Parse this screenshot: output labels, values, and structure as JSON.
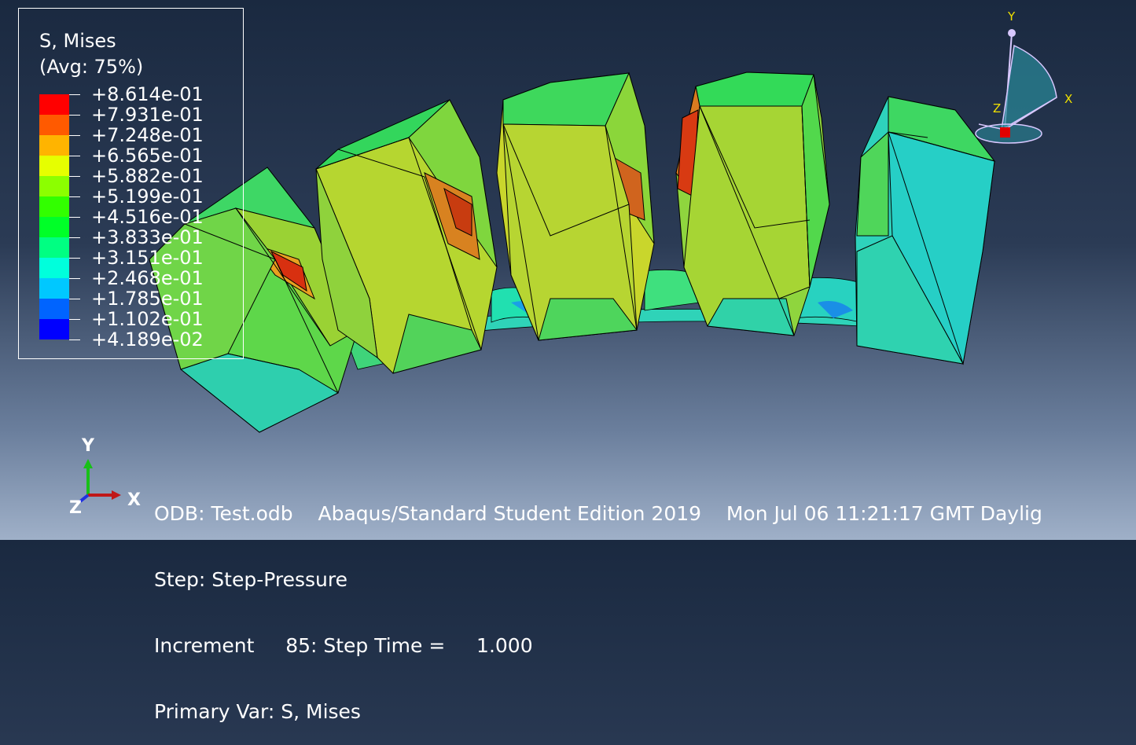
{
  "legend": {
    "title": "S, Mises",
    "subtitle": "(Avg: 75%)",
    "levels": [
      {
        "value": "+8.614e-01",
        "color": "#ff0000"
      },
      {
        "value": "+7.931e-01",
        "color": "#ff5a00"
      },
      {
        "value": "+7.248e-01",
        "color": "#ffb400"
      },
      {
        "value": "+6.565e-01",
        "color": "#e6ff00"
      },
      {
        "value": "+5.882e-01",
        "color": "#8cff00"
      },
      {
        "value": "+5.199e-01",
        "color": "#32ff00"
      },
      {
        "value": "+4.516e-01",
        "color": "#00ff28"
      },
      {
        "value": "+3.833e-01",
        "color": "#00ff82"
      },
      {
        "value": "+3.151e-01",
        "color": "#00ffdc"
      },
      {
        "value": "+2.468e-01",
        "color": "#00c8ff"
      },
      {
        "value": "+1.785e-01",
        "color": "#0064ff"
      },
      {
        "value": "+1.102e-01",
        "color": "#0000ff"
      },
      {
        "value": "+4.189e-02",
        "color": ""
      }
    ]
  },
  "info": {
    "odb": "ODB: Test.odb",
    "edition": "Abaqus/Standard Student Edition 2019",
    "datetime": "Mon Jul 06 11:21:17 GMT Daylig",
    "step": "Step: Step-Pressure",
    "increment": "Increment     85: Step Time =     1.000",
    "primary_var": "Primary Var: S, Mises"
  },
  "triad": {
    "y": "Y",
    "x": "X",
    "z": "Z"
  },
  "view_triad": {
    "y": "Y",
    "x": "X",
    "z": "Z"
  },
  "colors": {
    "edge": "#000000",
    "background_top": "#1a2940",
    "background_bottom": "#9fb0c8"
  }
}
